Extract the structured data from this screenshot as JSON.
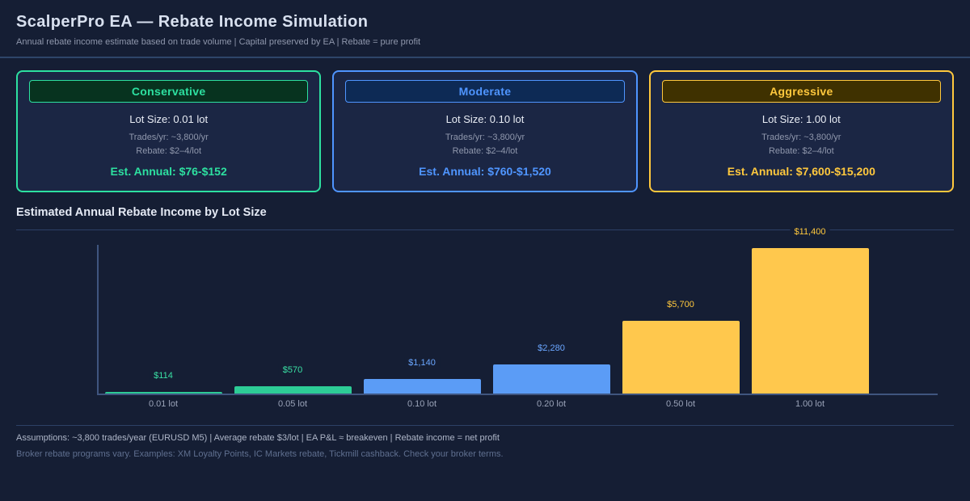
{
  "header": {
    "title": "ScalperPro EA — Rebate Income Simulation",
    "subtitle": "Annual rebate income estimate based on trade volume | Capital preserved by EA | Rebate = pure profit"
  },
  "cards": [
    {
      "name": "Conservative",
      "lot_size": "Lot Size: 0.01 lot",
      "trades": "Trades/yr: ~3,800/yr",
      "rebate": "Rebate: $2–4/lot",
      "annual": "Est. Annual: $76-$152",
      "accent": "#2de0a0",
      "band_bg": "#07331f"
    },
    {
      "name": "Moderate",
      "lot_size": "Lot Size: 0.10 lot",
      "trades": "Trades/yr: ~3,800/yr",
      "rebate": "Rebate: $2–4/lot",
      "annual": "Est. Annual: $760-$1,520",
      "accent": "#4f95ff",
      "band_bg": "#0d2a55"
    },
    {
      "name": "Aggressive",
      "lot_size": "Lot Size: 1.00 lot",
      "trades": "Trades/yr: ~3,800/yr",
      "rebate": "Rebate: $2–4/lot",
      "annual": "Est. Annual: $7,600-$15,200",
      "accent": "#ffc83d",
      "band_bg": "#3f3100"
    }
  ],
  "chart_data": {
    "type": "bar",
    "title": "Estimated Annual Rebate Income by Lot Size",
    "categories": [
      "0.01 lot",
      "0.05 lot",
      "0.10 lot",
      "0.20 lot",
      "0.50 lot",
      "1.00 lot"
    ],
    "values": [
      114,
      570,
      1140,
      2280,
      5700,
      11400
    ],
    "value_labels": [
      "$114",
      "$570",
      "$1,140",
      "$2,280",
      "$5,700",
      "$11,400"
    ],
    "bar_colors": [
      "#2dcc96",
      "#2dcc96",
      "#5b9cf6",
      "#5b9cf6",
      "#ffc84d",
      "#ffc84d"
    ],
    "label_colors": [
      "#3ae0a4",
      "#3ae0a4",
      "#6aa6ff",
      "#6aa6ff",
      "#ffc83d",
      "#ffc83d"
    ],
    "xlabel": "",
    "ylabel": "",
    "ylim": [
      0,
      11700
    ],
    "grid": false,
    "legend": false
  },
  "footer": {
    "assumptions": "Assumptions: ~3,800 trades/year (EURUSD M5) | Average rebate $3/lot | EA P&L ≈ breakeven | Rebate income = net profit",
    "disclaimer": "Broker rebate programs vary. Examples: XM Loyalty Points, IC Markets rebate, Tickmill cashback. Check your broker terms."
  }
}
